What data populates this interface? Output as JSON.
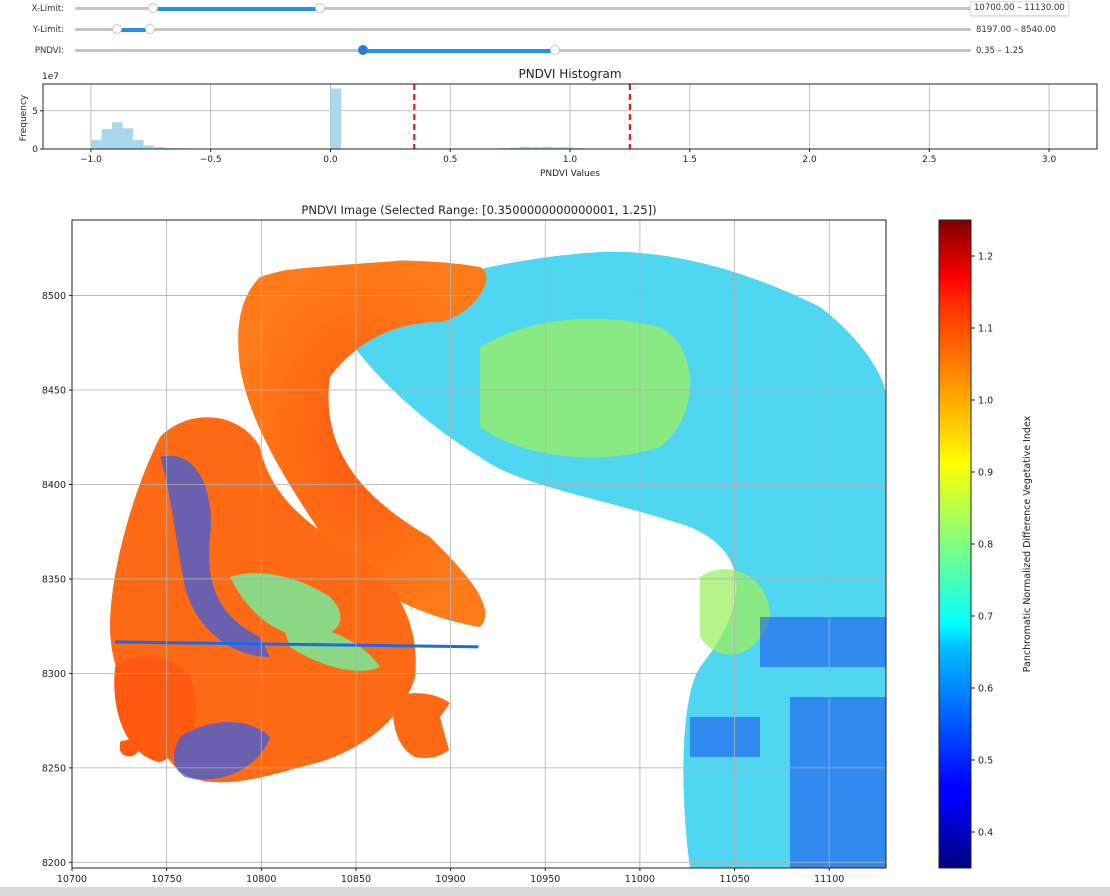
{
  "sliders": [
    {
      "label": "X-Limit:",
      "value_text": "10700.00 – 11130.00",
      "min": 10500,
      "max": 12800,
      "low": 10700,
      "high": 11130
    },
    {
      "label": "Y-Limit:",
      "value_text": "8197.00 – 8540.00",
      "min": 7750,
      "max": 17250,
      "low": 8197,
      "high": 8540
    },
    {
      "label": "PNDVI:",
      "value_text": "0.35 – 1.25",
      "min": -1,
      "max": 3.2,
      "low": 0.35,
      "high": 1.25
    }
  ],
  "colors": {
    "accent": "#2b8fe0",
    "hist_bar": "#a8d8ea",
    "threshold": "#e02020"
  },
  "chart_data": [
    {
      "type": "bar",
      "title": "PNDVI Histogram",
      "xlabel": "PNDVI Values",
      "ylabel": "Frequency",
      "y_offset_text": "1e7",
      "xlim": [
        -1.2,
        3.2
      ],
      "ylim": [
        0,
        8.5
      ],
      "xticks": [
        -1.0,
        -0.5,
        0.0,
        0.5,
        1.0,
        1.5,
        2.0,
        2.5,
        3.0
      ],
      "xtick_labels": [
        "−1.0",
        "−0.5",
        "0.0",
        "0.5",
        "1.0",
        "1.5",
        "2.0",
        "2.5",
        "3.0"
      ],
      "yticks": [
        0,
        5
      ],
      "ytick_labels": [
        "0",
        "5"
      ],
      "grid": true,
      "bin_width": 0.044,
      "bins": [
        {
          "x": -0.978,
          "y": 1.2
        },
        {
          "x": -0.934,
          "y": 2.6
        },
        {
          "x": -0.89,
          "y": 3.5
        },
        {
          "x": -0.846,
          "y": 2.7
        },
        {
          "x": -0.802,
          "y": 1.2
        },
        {
          "x": -0.758,
          "y": 0.45
        },
        {
          "x": -0.714,
          "y": 0.25
        },
        {
          "x": -0.67,
          "y": 0.15
        },
        {
          "x": -0.626,
          "y": 0.1
        },
        {
          "x": -0.582,
          "y": 0.05
        },
        {
          "x": -0.538,
          "y": 0.04
        },
        {
          "x": 0.022,
          "y": 7.9
        },
        {
          "x": 0.726,
          "y": 0.12
        },
        {
          "x": 0.77,
          "y": 0.18
        },
        {
          "x": 0.814,
          "y": 0.3
        },
        {
          "x": 0.858,
          "y": 0.25
        },
        {
          "x": 0.902,
          "y": 0.3
        },
        {
          "x": 0.946,
          "y": 0.22
        },
        {
          "x": 0.99,
          "y": 0.25
        },
        {
          "x": 1.034,
          "y": 0.15
        }
      ],
      "vlines": [
        0.35,
        1.25
      ]
    },
    {
      "type": "heatmap",
      "title": "PNDVI Image (Selected Range: [0.3500000000000001, 1.25])",
      "xlim": [
        10700,
        11130
      ],
      "ylim": [
        8197,
        8540
      ],
      "xticks": [
        10700,
        10750,
        10800,
        10850,
        10900,
        10950,
        11000,
        11050,
        11100
      ],
      "xtick_labels": [
        "10700",
        "10750",
        "10800",
        "10850",
        "10900",
        "10950",
        "11000",
        "11050",
        "11100"
      ],
      "yticks": [
        8200,
        8250,
        8300,
        8350,
        8400,
        8450,
        8500
      ],
      "ytick_labels": [
        "8200",
        "8250",
        "8300",
        "8350",
        "8400",
        "8450",
        "8500"
      ],
      "grid": true,
      "colormap": "jet",
      "colorbar": {
        "label": "Panchromatic Normalized Difference Vegetative Index",
        "range": [
          0.35,
          1.25
        ],
        "ticks": [
          0.4,
          0.5,
          0.6,
          0.7,
          0.8,
          0.9,
          1.0,
          1.1,
          1.2
        ],
        "tick_labels": [
          "0.4",
          "0.5",
          "0.6",
          "0.7",
          "0.8",
          "0.9",
          "1.0",
          "1.1",
          "1.2"
        ]
      }
    }
  ]
}
